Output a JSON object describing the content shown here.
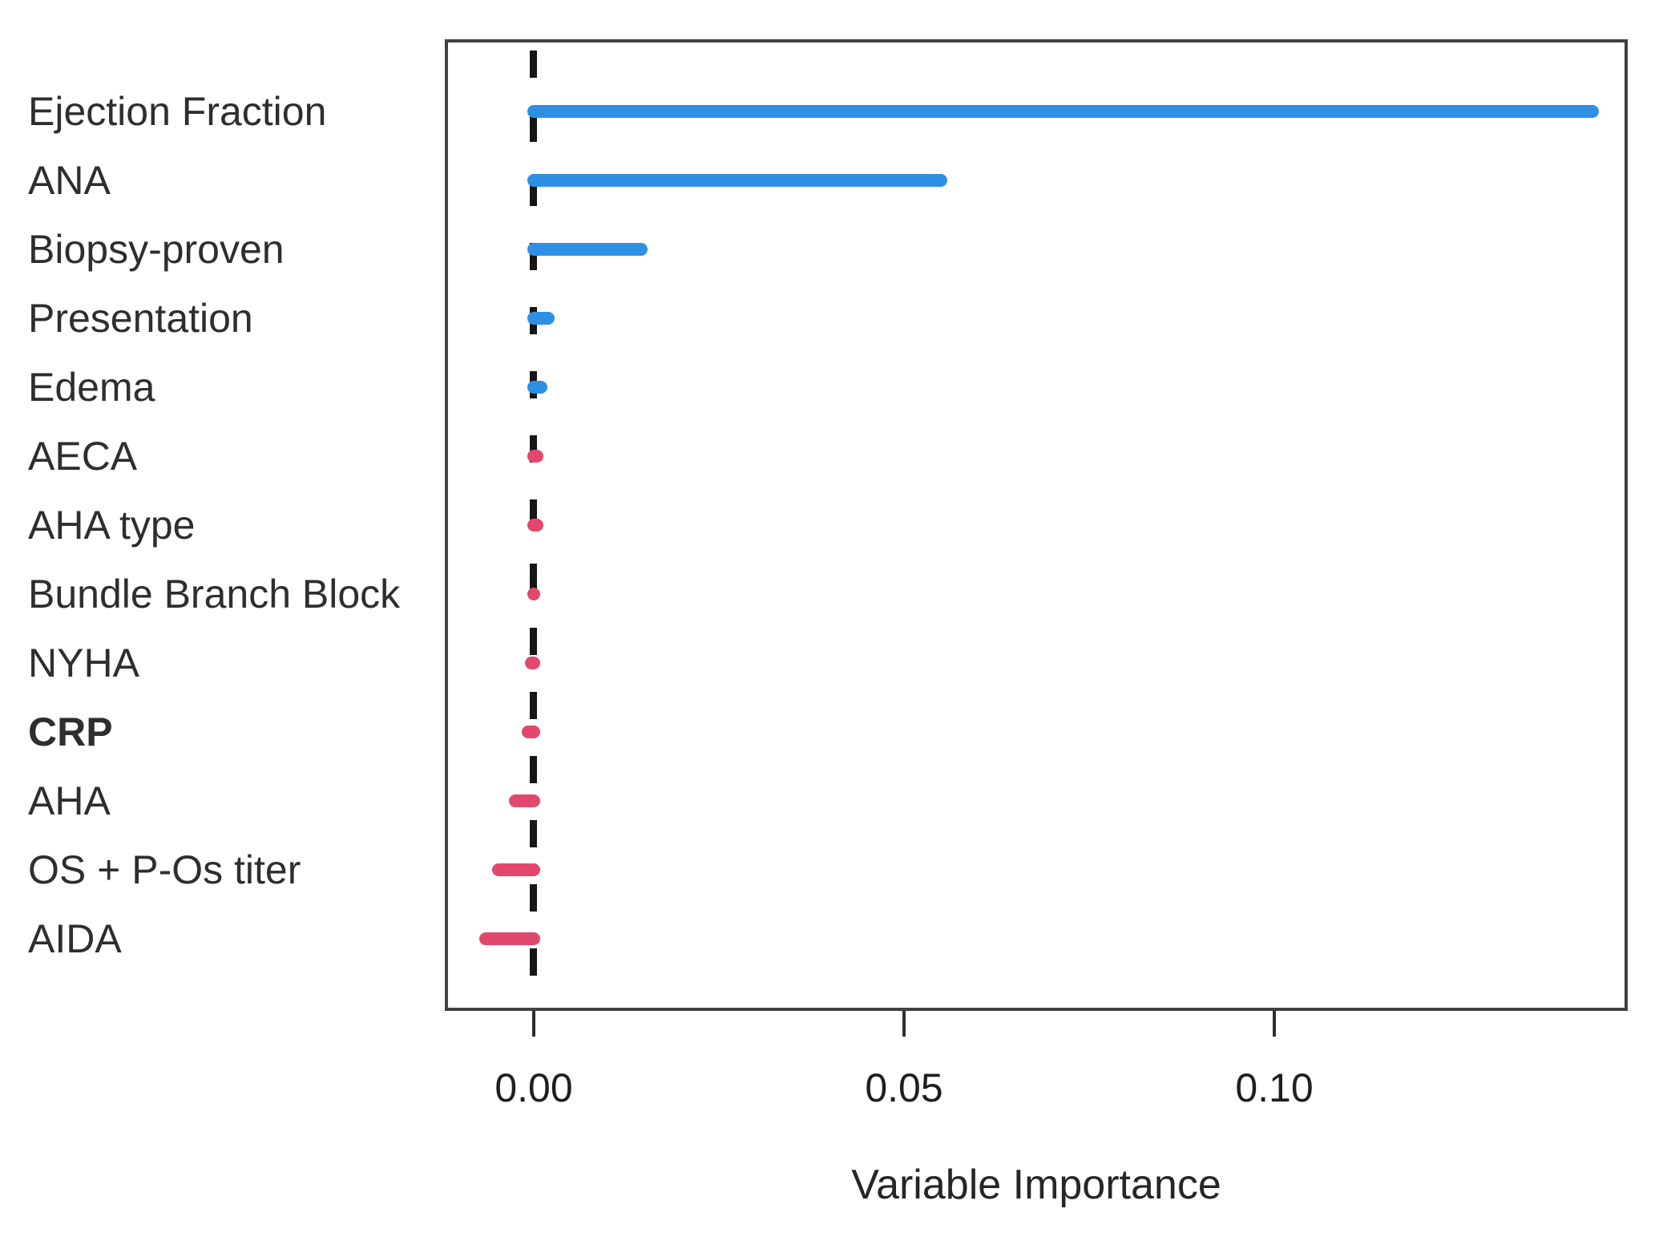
{
  "chart_data": {
    "type": "bar",
    "orientation": "horizontal",
    "title": "",
    "xlabel": "Variable Importance",
    "ylabel": "",
    "xlim": [
      -0.012,
      0.1477
    ],
    "grid": false,
    "legend": false,
    "zero_line_style": "vertical-black-dashed-at-0",
    "colors": {
      "positive_bar": "#2e90e4",
      "negative_bar": "#e2486c"
    },
    "x_ticks": [
      {
        "value": 0.0,
        "label": "0.00"
      },
      {
        "value": 0.05,
        "label": "0.05"
      },
      {
        "value": 0.1,
        "label": "0.10"
      }
    ],
    "bars": [
      {
        "label": "Ejection Fraction",
        "value": 0.143,
        "color": "#2e90e4",
        "bold": false
      },
      {
        "label": "ANA",
        "value": 0.055,
        "color": "#2e90e4",
        "bold": false
      },
      {
        "label": "Biopsy-proven",
        "value": 0.0145,
        "color": "#2e90e4",
        "bold": false
      },
      {
        "label": "Presentation",
        "value": 0.002,
        "color": "#2e90e4",
        "bold": false
      },
      {
        "label": "Edema",
        "value": 0.001,
        "color": "#2e90e4",
        "bold": false
      },
      {
        "label": "AECA",
        "value": 0.0004,
        "color": "#e2486c",
        "bold": false
      },
      {
        "label": "AHA type",
        "value": 0.0004,
        "color": "#e2486c",
        "bold": false
      },
      {
        "label": "Bundle Branch Block",
        "value": 0.0,
        "color": "#e2486c",
        "bold": false
      },
      {
        "label": "NYHA",
        "value": -0.0003,
        "color": "#e2486c",
        "bold": false
      },
      {
        "label": "CRP",
        "value": -0.0008,
        "color": "#e2486c",
        "bold": true
      },
      {
        "label": "AHA",
        "value": -0.0025,
        "color": "#e2486c",
        "bold": false
      },
      {
        "label": "OS + P-Os titer",
        "value": -0.0048,
        "color": "#e2486c",
        "bold": false
      },
      {
        "label": "AIDA",
        "value": -0.0065,
        "color": "#e2486c",
        "bold": false
      }
    ]
  }
}
